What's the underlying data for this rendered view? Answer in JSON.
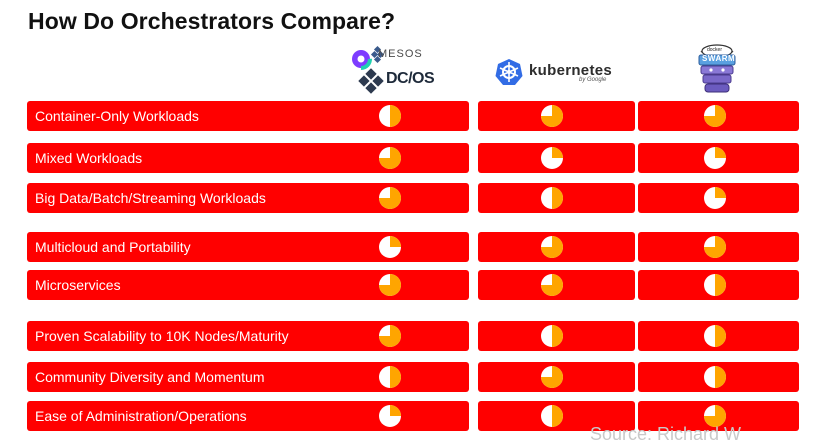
{
  "slide": {
    "title": "How Do Orchestrators Compare?",
    "footer_partial": "Source: Richard W"
  },
  "columns": [
    {
      "name": "mesos-dcos",
      "logo_text_1": "MESOS",
      "logo_text_2": "DC/OS"
    },
    {
      "name": "kubernetes",
      "logo_text_1": "kubernetes",
      "logo_text_2": "by Google"
    },
    {
      "name": "docker-swarm",
      "logo_text_1": "SWARM",
      "logo_text_2": "docker"
    }
  ],
  "colors": {
    "row_red": "#ff0000",
    "orange": "#ffa500",
    "white": "#ffffff"
  },
  "rows": [
    {
      "label": "Container-Only Workloads",
      "ratings": [
        0.5,
        0.75,
        0.75
      ]
    },
    {
      "label": "Mixed Workloads",
      "ratings": [
        0.75,
        0.25,
        0.25
      ]
    },
    {
      "label": "Big Data/Batch/Streaming Workloads",
      "ratings": [
        0.75,
        0.5,
        0.25
      ]
    },
    {
      "label": "Multicloud and Portability",
      "ratings": [
        0.25,
        0.75,
        0.75
      ]
    },
    {
      "label": "Microservices",
      "ratings": [
        0.75,
        0.75,
        0.5
      ]
    },
    {
      "label": "Proven Scalability to 10K Nodes/Maturity",
      "ratings": [
        0.75,
        0.5,
        0.5
      ]
    },
    {
      "label": "Community Diversity and Momentum",
      "ratings": [
        0.5,
        0.75,
        0.5
      ]
    },
    {
      "label": "Ease of Administration/Operations",
      "ratings": [
        0.25,
        0.5,
        0.75
      ]
    }
  ]
}
